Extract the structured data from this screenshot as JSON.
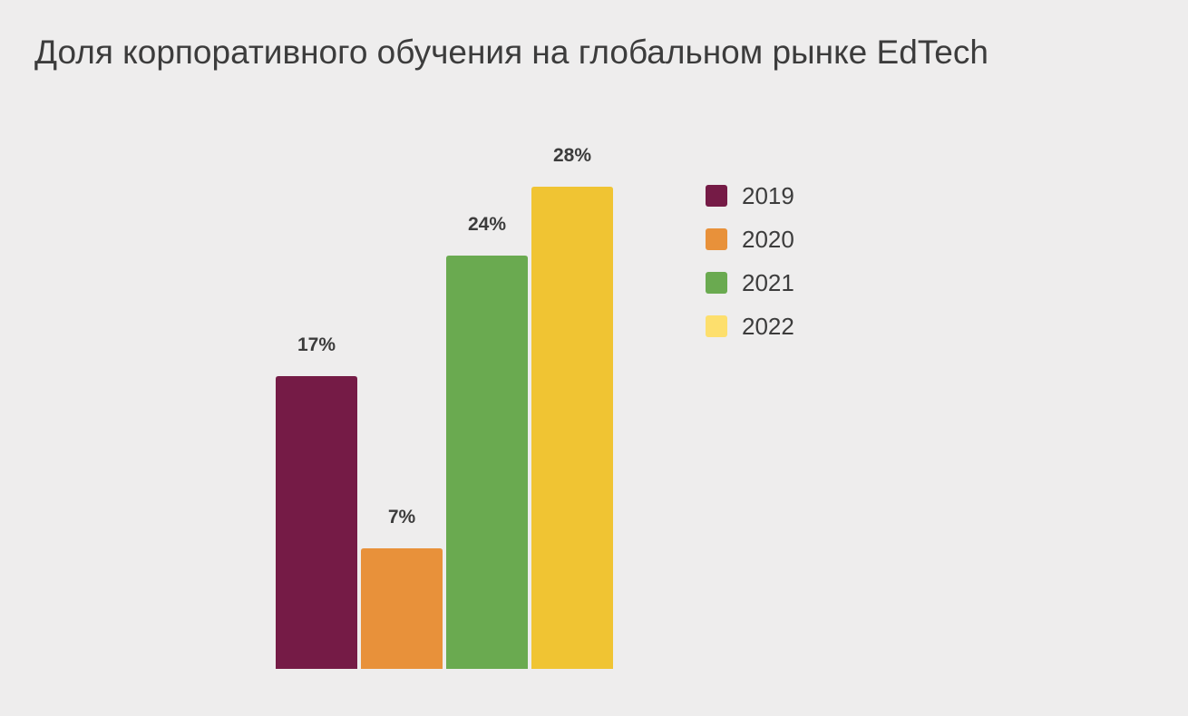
{
  "chart_data": {
    "type": "bar",
    "title": "Доля корпоративного обучения на глобальном рынке EdTech",
    "xlabel": "",
    "ylabel": "",
    "categories": [
      "2019",
      "2020",
      "2021",
      "2022"
    ],
    "values": [
      17,
      7,
      24,
      28
    ],
    "value_labels": [
      "17%",
      "7%",
      "24%",
      "28%"
    ],
    "unit": "%",
    "ylim": [
      0,
      28
    ],
    "colors": [
      "#751b46",
      "#e8913a",
      "#6aaa50",
      "#f0c433"
    ],
    "legend": {
      "placement": "right",
      "items": [
        {
          "label": "2019",
          "color": "#751b46"
        },
        {
          "label": "2020",
          "color": "#e8913a"
        },
        {
          "label": "2021",
          "color": "#6aaa50"
        },
        {
          "label": "2022",
          "color": "#fddf6d"
        }
      ]
    },
    "grid": false,
    "axes_visible": false
  }
}
